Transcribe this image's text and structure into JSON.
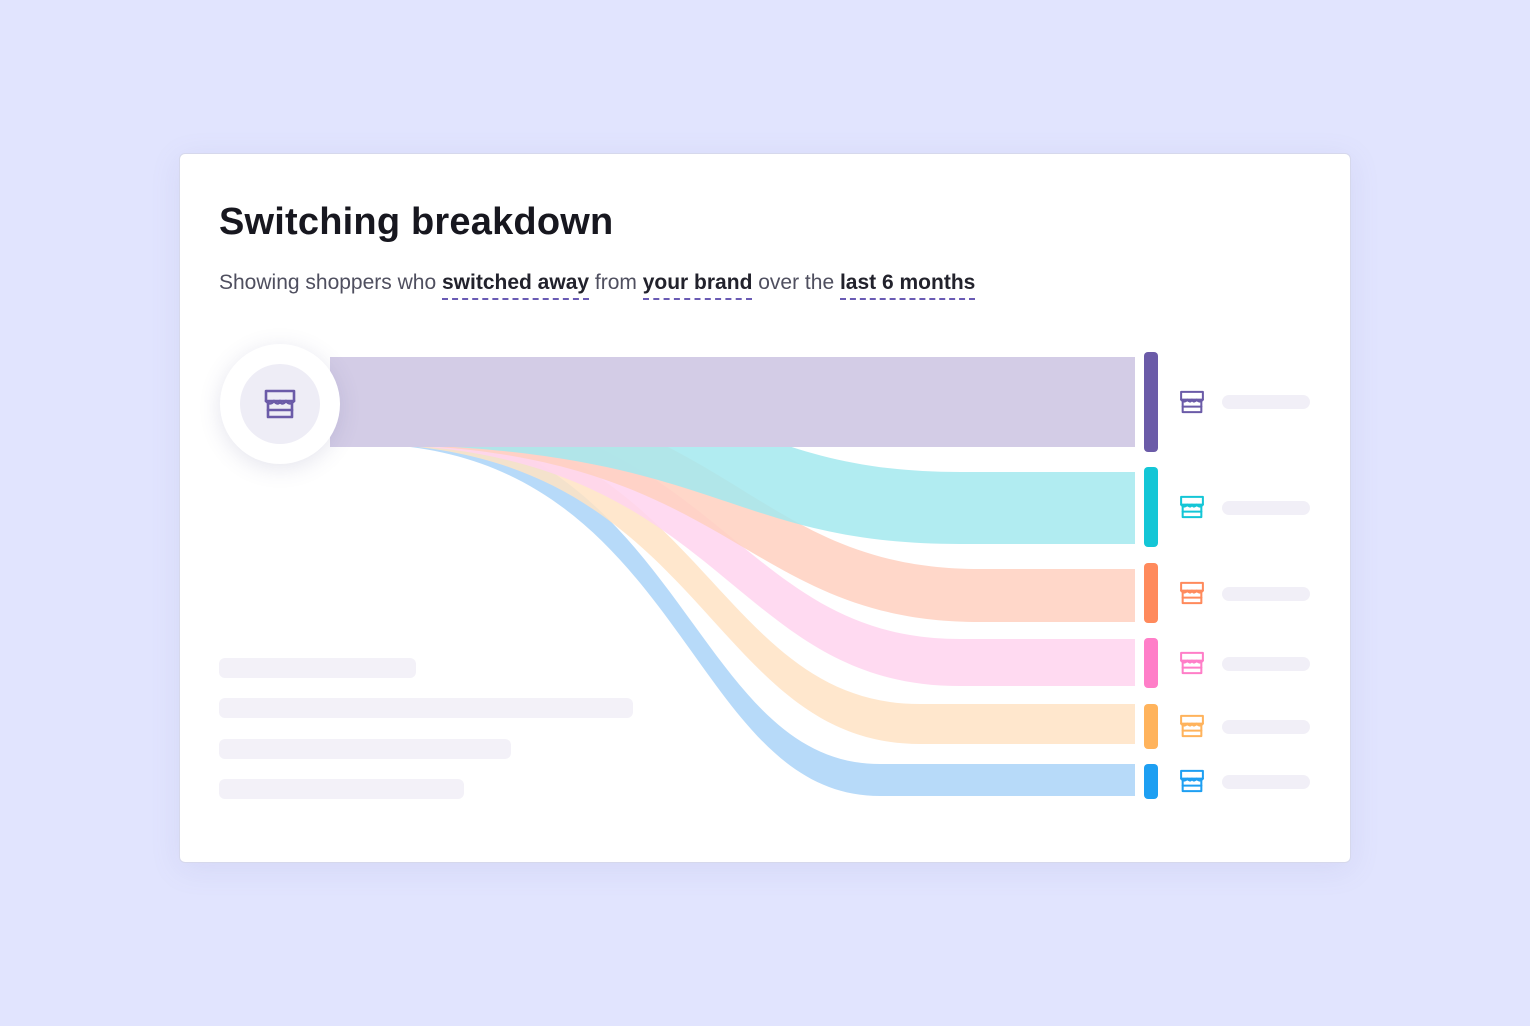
{
  "card": {
    "title": "Switching breakdown",
    "subtitle": {
      "prefix": "Showing shoppers who ",
      "action": "switched away",
      "middle1": " from ",
      "brand": "your brand",
      "middle2": " over the ",
      "period": "last 6 months"
    }
  },
  "source": {
    "icon": "store-icon",
    "color": "#6b5ba8"
  },
  "destinations": [
    {
      "icon": "store-icon",
      "color": "#6b5ba8",
      "flow_color": "#d3cce6",
      "label": ""
    },
    {
      "icon": "store-icon",
      "color": "#14c6d6",
      "flow_color": "#a3e9ef",
      "label": ""
    },
    {
      "icon": "store-icon",
      "color": "#ff8a5c",
      "flow_color": "#ffd0c0",
      "label": ""
    },
    {
      "icon": "store-icon",
      "color": "#ff7ec8",
      "flow_color": "#ffd4ef",
      "label": ""
    },
    {
      "icon": "store-icon",
      "color": "#ffb35c",
      "flow_color": "#ffe3c4",
      "label": ""
    },
    {
      "icon": "store-icon",
      "color": "#1e9ff2",
      "flow_color": "#aad4f8",
      "label": ""
    }
  ],
  "colors": {
    "background": "#e1e4fe",
    "card": "#ffffff",
    "accent_underline": "#6a5bb4",
    "placeholder": "#f1eff7"
  }
}
